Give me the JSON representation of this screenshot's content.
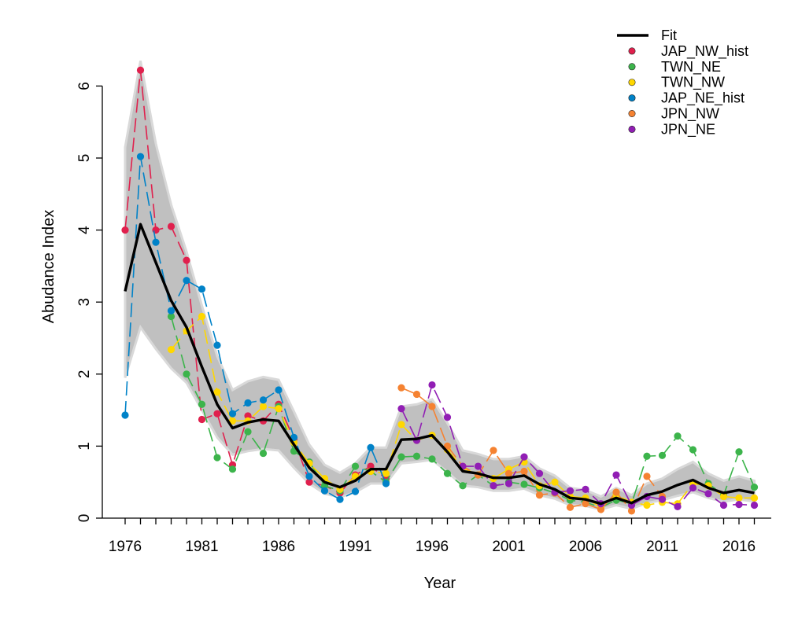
{
  "chart_data": {
    "type": "line",
    "xlabel": "Year",
    "ylabel": "Abudance Index",
    "xlim": [
      1976,
      2017
    ],
    "ylim": [
      0,
      6.3
    ],
    "xticks": [
      1976,
      1981,
      1986,
      1991,
      1996,
      2001,
      2006,
      2011,
      2016
    ],
    "yticks": [
      0,
      1,
      2,
      3,
      4,
      5,
      6
    ],
    "legend_position": "top-right",
    "ci_color": "#c0c0c0",
    "fit": {
      "name": "Fit",
      "color": "#000000",
      "x": [
        1976,
        1977,
        1978,
        1979,
        1980,
        1981,
        1982,
        1983,
        1984,
        1985,
        1986,
        1987,
        1988,
        1989,
        1990,
        1991,
        1992,
        1993,
        1994,
        1995,
        1996,
        1997,
        1998,
        1999,
        2000,
        2001,
        2002,
        2003,
        2004,
        2005,
        2006,
        2007,
        2008,
        2009,
        2010,
        2011,
        2012,
        2013,
        2014,
        2015,
        2016,
        2017
      ],
      "y": [
        3.15,
        4.08,
        3.55,
        3.02,
        2.65,
        2.1,
        1.58,
        1.25,
        1.33,
        1.37,
        1.35,
        1.02,
        0.7,
        0.5,
        0.43,
        0.52,
        0.68,
        0.68,
        1.09,
        1.1,
        1.15,
        0.92,
        0.65,
        0.62,
        0.56,
        0.56,
        0.59,
        0.47,
        0.4,
        0.28,
        0.26,
        0.2,
        0.28,
        0.21,
        0.32,
        0.37,
        0.46,
        0.53,
        0.42,
        0.35,
        0.39,
        0.35
      ],
      "lower": [
        1.95,
        2.65,
        2.35,
        2.08,
        1.88,
        1.5,
        1.12,
        0.88,
        0.93,
        0.96,
        0.94,
        0.7,
        0.48,
        0.34,
        0.29,
        0.36,
        0.48,
        0.48,
        0.76,
        0.78,
        0.81,
        0.64,
        0.45,
        0.43,
        0.38,
        0.38,
        0.41,
        0.32,
        0.27,
        0.18,
        0.17,
        0.12,
        0.18,
        0.13,
        0.21,
        0.25,
        0.31,
        0.36,
        0.28,
        0.23,
        0.26,
        0.23
      ],
      "upper": [
        5.15,
        6.35,
        5.2,
        4.35,
        3.7,
        2.95,
        2.25,
        1.78,
        1.9,
        1.96,
        1.92,
        1.48,
        1.02,
        0.74,
        0.63,
        0.76,
        0.98,
        0.98,
        1.55,
        1.58,
        1.65,
        1.32,
        0.94,
        0.89,
        0.82,
        0.82,
        0.86,
        0.69,
        0.59,
        0.42,
        0.39,
        0.3,
        0.42,
        0.32,
        0.48,
        0.55,
        0.68,
        0.78,
        0.62,
        0.52,
        0.58,
        0.52
      ]
    },
    "series": [
      {
        "name": "JAP_NW_hist",
        "color": "#e0204d",
        "x": [
          1976,
          1977,
          1978,
          1979,
          1980,
          1981,
          1982,
          1983,
          1984,
          1985,
          1986,
          1987,
          1988,
          1989,
          1990,
          1991,
          1992,
          1993
        ],
        "values": [
          4.0,
          6.22,
          4.0,
          4.05,
          3.58,
          1.37,
          1.45,
          0.74,
          1.42,
          1.35,
          1.58,
          1.1,
          0.5,
          0.45,
          0.35,
          0.6,
          0.72,
          0.55
        ]
      },
      {
        "name": "TWN_NE",
        "color": "#3cb44b",
        "x": [
          1979,
          1980,
          1981,
          1982,
          1983,
          1984,
          1985,
          1986,
          1987,
          1988,
          1989,
          1990,
          1991,
          1992,
          1993,
          1994,
          1995,
          1996,
          1997,
          1998,
          1999,
          2000,
          2001,
          2002,
          2003,
          2004,
          2005,
          2006,
          2007,
          2008,
          2009,
          2010,
          2011,
          2012,
          2013,
          2014,
          2015,
          2016,
          2017
        ],
        "values": [
          2.8,
          2.0,
          1.58,
          0.84,
          0.68,
          1.2,
          0.9,
          1.55,
          0.93,
          0.78,
          0.45,
          0.38,
          0.72,
          0.65,
          0.5,
          0.85,
          0.86,
          0.82,
          0.62,
          0.45,
          0.6,
          0.45,
          0.5,
          0.47,
          0.42,
          0.35,
          0.25,
          0.22,
          0.15,
          0.25,
          0.2,
          0.86,
          0.87,
          1.14,
          0.95,
          0.48,
          0.32,
          0.92,
          0.43
        ]
      },
      {
        "name": "TWN_NW",
        "color": "#ffd700",
        "x": [
          1979,
          1980,
          1981,
          1982,
          1983,
          1984,
          1985,
          1986,
          1987,
          1988,
          1989,
          1990,
          1991,
          1992,
          1993,
          1994,
          1995,
          1996,
          1997,
          1998,
          1999,
          2000,
          2001,
          2002,
          2003,
          2004,
          2005,
          2006,
          2007,
          2008,
          2009,
          2010,
          2011,
          2012,
          2013,
          2014,
          2015,
          2016,
          2017
        ],
        "values": [
          2.34,
          2.6,
          2.8,
          1.75,
          1.35,
          1.35,
          1.55,
          1.52,
          1.05,
          0.76,
          0.55,
          0.4,
          0.58,
          0.65,
          0.62,
          1.3,
          1.08,
          1.15,
          0.95,
          0.7,
          0.6,
          0.55,
          0.68,
          0.78,
          0.45,
          0.5,
          0.3,
          0.28,
          0.15,
          0.32,
          0.22,
          0.18,
          0.22,
          0.2,
          0.48,
          0.45,
          0.3,
          0.28,
          0.28
        ]
      },
      {
        "name": "JAP_NE_hist",
        "color": "#0082c8",
        "x": [
          1976,
          1977,
          1978,
          1979,
          1980,
          1981,
          1982,
          1983,
          1984,
          1985,
          1986,
          1987,
          1988,
          1989,
          1990,
          1991,
          1992,
          1993
        ],
        "values": [
          1.43,
          5.02,
          3.83,
          2.88,
          3.3,
          3.18,
          2.4,
          1.45,
          1.6,
          1.64,
          1.78,
          1.12,
          0.58,
          0.38,
          0.26,
          0.37,
          0.98,
          0.48
        ]
      },
      {
        "name": "JPN_NW",
        "color": "#f58231",
        "x": [
          1994,
          1995,
          1996,
          1997,
          1998,
          1999,
          2000,
          2001,
          2002,
          2003,
          2004,
          2005,
          2006,
          2007,
          2008,
          2009,
          2010,
          2011
        ],
        "values": [
          1.81,
          1.72,
          1.55,
          1.0,
          0.72,
          0.6,
          0.94,
          0.62,
          0.65,
          0.32,
          0.35,
          0.15,
          0.2,
          0.12,
          0.36,
          0.1,
          0.58,
          0.3
        ]
      },
      {
        "name": "JPN_NE",
        "color": "#911eb4",
        "x": [
          1994,
          1995,
          1996,
          1997,
          1998,
          1999,
          2000,
          2001,
          2002,
          2003,
          2004,
          2005,
          2006,
          2007,
          2008,
          2009,
          2010,
          2011,
          2012,
          2013,
          2014,
          2015,
          2016,
          2017
        ],
        "values": [
          1.52,
          1.08,
          1.85,
          1.4,
          0.72,
          0.72,
          0.45,
          0.48,
          0.85,
          0.62,
          0.36,
          0.38,
          0.4,
          0.2,
          0.6,
          0.18,
          0.3,
          0.26,
          0.16,
          0.42,
          0.34,
          0.18,
          0.19,
          0.18
        ]
      }
    ]
  }
}
